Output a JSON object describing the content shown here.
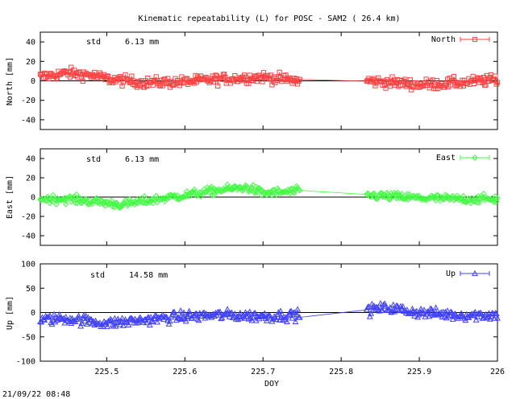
{
  "chart_data": {
    "type": "scatter",
    "title": "Kinematic repeatability (L) for POSC - SAM2  ( 26.4 km)",
    "xlabel": "DOY",
    "xlim": [
      225.415,
      226.0
    ],
    "x_ticks": [
      "225.5",
      "225.6",
      "225.7",
      "225.8",
      "225.9",
      "226"
    ],
    "x_tick_values": [
      225.5,
      225.6,
      225.7,
      225.8,
      225.9,
      226.0
    ],
    "data_gap": [
      225.748,
      225.832
    ],
    "footer": "21/09/22 08:48",
    "panels": [
      {
        "name": "North",
        "ylabel": "North [mm]",
        "legend": "North",
        "color": "#ff4040",
        "marker": "square",
        "ylim": [
          -50,
          50
        ],
        "y_ticks": [
          "40",
          "20",
          "0",
          "-20",
          "-40"
        ],
        "y_tick_values": [
          40,
          20,
          0,
          -20,
          -40
        ],
        "std_label": "std",
        "std_value": "6.13 mm",
        "profile_x": [
          225.415,
          225.45,
          225.48,
          225.5,
          225.55,
          225.6,
          225.65,
          225.7,
          225.745,
          225.835,
          225.87,
          225.9,
          225.95,
          226.0
        ],
        "profile_y": [
          4,
          8,
          6,
          2,
          -2,
          -1,
          2,
          4,
          0,
          0,
          -2,
          -4,
          -2,
          1
        ],
        "noise_sd": 5
      },
      {
        "name": "East",
        "ylabel": "East [mm]",
        "legend": "East",
        "color": "#40ff40",
        "marker": "diamond",
        "ylim": [
          -50,
          50
        ],
        "y_ticks": [
          "40",
          "20",
          "0",
          "-20",
          "-40"
        ],
        "y_tick_values": [
          40,
          20,
          0,
          -20,
          -40
        ],
        "std_label": "std",
        "std_value": "6.13 mm",
        "profile_x": [
          225.415,
          225.45,
          225.5,
          225.52,
          225.55,
          225.6,
          225.65,
          225.68,
          225.7,
          225.745,
          225.835,
          225.9,
          225.95,
          226.0
        ],
        "profile_y": [
          -2,
          -2,
          -6,
          -8,
          -4,
          2,
          8,
          10,
          4,
          6,
          2,
          -1,
          -2,
          -2
        ],
        "noise_sd": 4
      },
      {
        "name": "Up",
        "ylabel": "Up [mm]",
        "legend": "Up",
        "color": "#4040ff",
        "marker": "triangle",
        "ylim": [
          -100,
          100
        ],
        "y_ticks": [
          "100",
          "50",
          "0",
          "-50",
          "-100"
        ],
        "y_tick_values": [
          100,
          50,
          0,
          -50,
          -100
        ],
        "std_label": "std",
        "std_value": "14.58 mm",
        "profile_x": [
          225.415,
          225.45,
          225.5,
          225.55,
          225.6,
          225.65,
          225.7,
          225.745,
          225.835,
          225.86,
          225.9,
          225.95,
          226.0
        ],
        "profile_y": [
          -15,
          -12,
          -22,
          -15,
          -8,
          -5,
          -8,
          -5,
          5,
          10,
          0,
          -5,
          -5
        ],
        "noise_sd": 10
      }
    ]
  }
}
